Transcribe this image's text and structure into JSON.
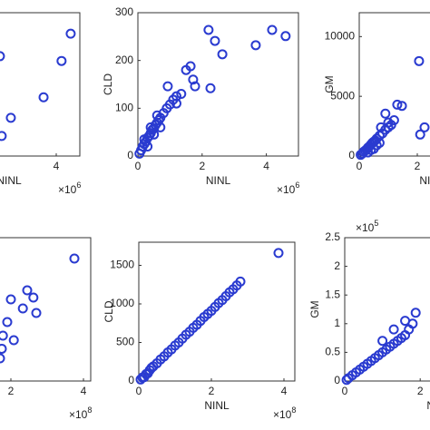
{
  "chart_data": [
    {
      "type": "scatter",
      "xlabel": "NINL",
      "x_multiplier": {
        "base": "×10",
        "exponent": "6"
      },
      "color": "#2a3bd0",
      "xlim": [
        0,
        4.8
      ],
      "ylim": [
        0,
        300
      ],
      "xticks": [
        4
      ],
      "yticks": [],
      "x": [
        2.09,
        2.15,
        2.46,
        3.57,
        4.18,
        4.49
      ],
      "y": [
        209,
        42,
        80,
        123,
        199,
        256
      ]
    },
    {
      "type": "scatter",
      "xlabel": "NINL",
      "ylabel": "CLD",
      "x_multiplier": {
        "base": "×10",
        "exponent": "6"
      },
      "color": "#2a3bd0",
      "xlim": [
        0,
        5
      ],
      "ylim": [
        0,
        300
      ],
      "xticks": [
        0,
        2,
        4
      ],
      "yticks": [
        0,
        100,
        200,
        300
      ],
      "x": [
        2.2,
        2.4,
        2.63,
        2.26,
        3.67,
        4.18,
        4.6,
        1.64,
        1.5,
        1.72,
        1.78,
        0.93,
        1.2,
        1.35,
        0.05,
        0.1,
        0.15,
        0.2,
        0.25,
        0.3,
        0.35,
        0.4,
        0.45,
        0.5,
        0.55,
        0.6,
        0.65,
        0.7,
        0.8,
        0.9,
        1.0,
        1.1,
        1.2,
        0.3,
        0.5,
        0.7,
        0.2,
        0.4,
        0.6
      ],
      "y": [
        264,
        241,
        213,
        142,
        232,
        264,
        251,
        188,
        180,
        160,
        146,
        146,
        110,
        130,
        5,
        12,
        20,
        25,
        30,
        38,
        42,
        48,
        55,
        58,
        65,
        70,
        75,
        80,
        90,
        100,
        108,
        118,
        125,
        20,
        45,
        60,
        35,
        60,
        85
      ]
    },
    {
      "type": "scatter",
      "xlabel": "NINL",
      "ylabel": "GM",
      "color": "#2a3bd0",
      "xlim": [
        0,
        5
      ],
      "ylim": [
        0,
        12000
      ],
      "xticks": [
        0,
        2
      ],
      "yticks": [
        0,
        5000,
        10000
      ],
      "x": [
        2.06,
        1.31,
        1.47,
        0.9,
        2.25,
        2.1,
        0.75,
        1.2,
        1.0,
        0.05,
        0.1,
        0.15,
        0.2,
        0.25,
        0.3,
        0.35,
        0.4,
        0.45,
        0.5,
        0.55,
        0.6,
        0.7,
        0.8,
        0.9,
        1.0,
        1.1,
        0.3,
        0.5,
        0.6,
        0.7,
        0.4
      ],
      "y": [
        7950,
        4300,
        4200,
        3550,
        2400,
        1800,
        2400,
        3000,
        2800,
        100,
        200,
        350,
        450,
        550,
        700,
        800,
        950,
        1100,
        1200,
        1300,
        1450,
        1700,
        1900,
        2200,
        2400,
        2600,
        300,
        600,
        900,
        1100,
        500
      ]
    },
    {
      "type": "scatter",
      "x_multiplier": {
        "base": "×10",
        "exponent": "8"
      },
      "color": "#2a3bd0",
      "xlim": [
        0,
        4.2
      ],
      "ylim": [
        0,
        2000
      ],
      "xticks": [
        2,
        4
      ],
      "yticks": [],
      "x": [
        3.75,
        2.45,
        2.62,
        2.7,
        2.33,
        2.0,
        1.9,
        1.78,
        2.08,
        1.7,
        1.75
      ],
      "y": [
        1709,
        1266,
        1165,
        949,
        1013,
        1139,
        823,
        633,
        570,
        316,
        450
      ]
    },
    {
      "type": "scatter",
      "xlabel": "NINL",
      "ylabel": "CLD",
      "x_multiplier": {
        "base": "×10",
        "exponent": "8"
      },
      "color": "#2a3bd0",
      "xlim": [
        0,
        4.3
      ],
      "ylim": [
        0,
        1800
      ],
      "xticks": [
        0,
        2,
        4
      ],
      "yticks": [
        0,
        500,
        1000,
        1500
      ],
      "x": [
        0.05,
        0.1,
        0.2,
        0.3,
        0.4,
        0.5,
        0.6,
        0.7,
        0.8,
        0.9,
        1.0,
        1.1,
        1.2,
        1.3,
        1.4,
        1.5,
        1.6,
        1.7,
        1.8,
        1.9,
        2.0,
        2.1,
        2.2,
        2.3,
        2.4,
        2.5,
        2.6,
        2.7,
        2.8,
        3.85,
        0.15,
        0.25,
        0.35
      ],
      "y": [
        20,
        45,
        90,
        140,
        190,
        230,
        280,
        320,
        370,
        410,
        460,
        500,
        550,
        600,
        640,
        690,
        730,
        780,
        830,
        870,
        910,
        960,
        1010,
        1050,
        1100,
        1150,
        1190,
        1240,
        1290,
        1660,
        50,
        100,
        170
      ]
    },
    {
      "type": "scatter",
      "xlabel": "NINL",
      "ylabel": "GM",
      "y_multiplier": {
        "base": "×10",
        "exponent": "5"
      },
      "color": "#2a3bd0",
      "xlim": [
        0,
        5
      ],
      "ylim": [
        0,
        2.5
      ],
      "xticks": [
        0,
        2
      ],
      "yticks": [
        0,
        0.5,
        1,
        1.5,
        2,
        2.5
      ],
      "x": [
        0.05,
        0.1,
        0.2,
        0.3,
        0.4,
        0.5,
        0.6,
        0.7,
        0.8,
        0.9,
        1.0,
        1.1,
        1.2,
        1.3,
        1.4,
        1.5,
        1.6,
        1.7,
        1.8,
        1.88,
        1.6,
        1.3,
        1.0
      ],
      "y": [
        0.02,
        0.05,
        0.1,
        0.15,
        0.2,
        0.25,
        0.3,
        0.35,
        0.4,
        0.45,
        0.5,
        0.55,
        0.6,
        0.65,
        0.7,
        0.75,
        0.8,
        0.9,
        1.0,
        1.19,
        1.05,
        0.9,
        0.7
      ]
    }
  ]
}
